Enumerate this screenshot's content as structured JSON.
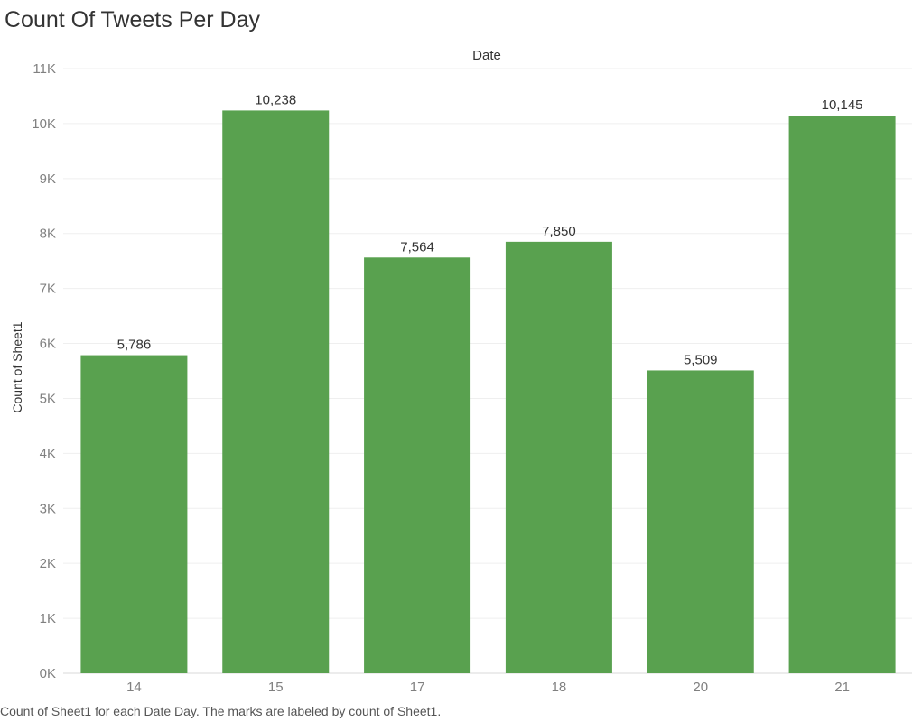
{
  "chart_data": {
    "type": "bar",
    "title": "Count Of Tweets Per Day",
    "xlabel": "Date",
    "ylabel": "Count of Sheet1",
    "categories": [
      "14",
      "15",
      "17",
      "18",
      "20",
      "21"
    ],
    "values": [
      5786,
      10238,
      7564,
      7850,
      5509,
      10145
    ],
    "value_labels": [
      "5,786",
      "10,238",
      "7,564",
      "7,850",
      "5,509",
      "10,145"
    ],
    "ylim": [
      0,
      11000
    ],
    "y_ticks": [
      0,
      1000,
      2000,
      3000,
      4000,
      5000,
      6000,
      7000,
      8000,
      9000,
      10000,
      11000
    ],
    "y_tick_labels": [
      "0K",
      "1K",
      "2K",
      "3K",
      "4K",
      "5K",
      "6K",
      "7K",
      "8K",
      "9K",
      "10K",
      "11K"
    ],
    "bar_color": "#59a14f",
    "grid": true,
    "legend": "none",
    "footnote": "Count of Sheet1 for each Date Day.  The marks are labeled by count of Sheet1."
  }
}
